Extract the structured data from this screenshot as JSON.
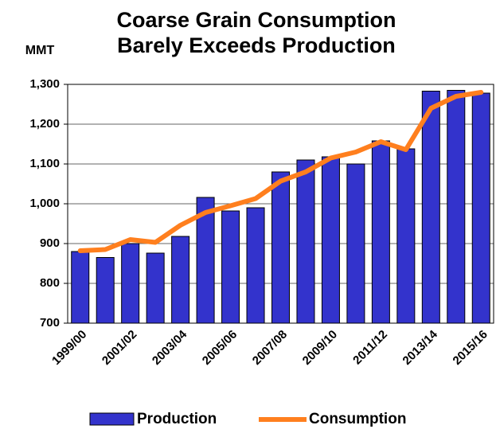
{
  "chart_data": {
    "type": "bar_line",
    "title": [
      "Coarse Grain Consumption",
      "Barely Exceeds Production"
    ],
    "y_label": "MMT",
    "categories": [
      "1999/00",
      null,
      "2001/02",
      null,
      "2003/04",
      null,
      "2005/06",
      null,
      "2007/08",
      null,
      "2009/10",
      null,
      "2011/12",
      null,
      "2013/14",
      null,
      "2015/16"
    ],
    "series": [
      {
        "name": "Production",
        "type": "bar",
        "color": "#3333cc",
        "values": [
          880,
          865,
          900,
          876,
          918,
          1016,
          982,
          990,
          1080,
          1110,
          1118,
          1100,
          1158,
          1138,
          1283,
          1285,
          1278
        ]
      },
      {
        "name": "Consumption",
        "type": "line",
        "color": "#ff7f1e",
        "values": [
          882,
          885,
          910,
          903,
          946,
          978,
          995,
          1013,
          1057,
          1080,
          1115,
          1130,
          1156,
          1136,
          1240,
          1270,
          1280
        ]
      }
    ],
    "ylim": [
      700,
      1300
    ],
    "yticks": [
      700,
      800,
      900,
      {
        "value": 1000,
        "label": "1,000"
      },
      {
        "value": 1100,
        "label": "1,100"
      },
      {
        "value": 1200,
        "label": "1,200"
      },
      {
        "value": 1300,
        "label": "1,300"
      }
    ],
    "grid": true,
    "legend": "bottom"
  }
}
